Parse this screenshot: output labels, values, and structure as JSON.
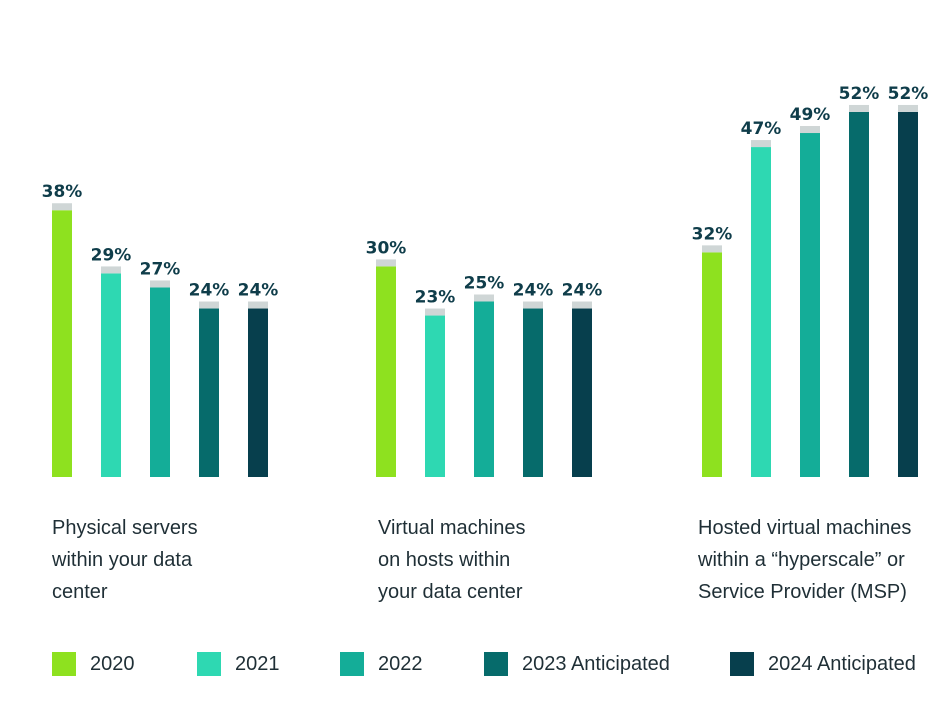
{
  "chart_data": {
    "type": "bar",
    "categories": [
      "Physical servers\nwithin your data\ncenter",
      "Virtual machines\non hosts within\nyour data center",
      "Hosted virtual machines\nwithin a “hyperscale” or\nService Provider (MSP)"
    ],
    "series": [
      {
        "name": "2020",
        "color": "#8ee11f",
        "values": [
          38,
          30,
          32
        ]
      },
      {
        "name": "2021",
        "color": "#2ed8b2",
        "values": [
          29,
          23,
          47
        ]
      },
      {
        "name": "2022",
        "color": "#14ad98",
        "values": [
          27,
          25,
          49
        ]
      },
      {
        "name": "2023 Anticipated",
        "color": "#066b6b",
        "values": [
          24,
          24,
          52
        ]
      },
      {
        "name": "2024 Anticipated",
        "color": "#073f4d",
        "values": [
          24,
          24,
          52
        ]
      }
    ],
    "value_suffix": "%",
    "ylim": [
      0,
      56
    ],
    "grid": false,
    "legend_position": "bottom"
  }
}
